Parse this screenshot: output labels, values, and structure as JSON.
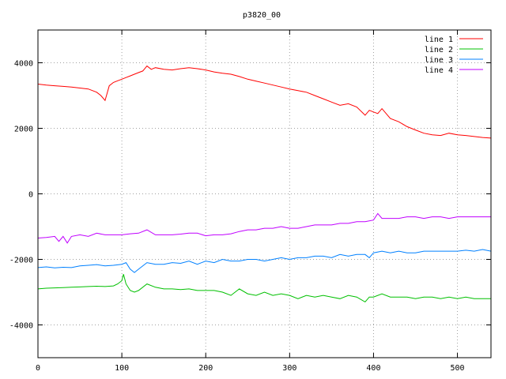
{
  "chart_data": {
    "type": "line",
    "title": "p3820_00",
    "xlabel": "",
    "ylabel": "",
    "xlim": [
      0,
      540
    ],
    "ylim": [
      -5000,
      5000
    ],
    "xticks": [
      0,
      100,
      200,
      300,
      400,
      500
    ],
    "yticks": [
      -4000,
      -2000,
      0,
      2000,
      4000
    ],
    "grid": true,
    "legend_position": "top-right",
    "series": [
      {
        "name": "line 1",
        "color": "#ff0000",
        "x": [
          0,
          10,
          20,
          30,
          40,
          50,
          60,
          70,
          75,
          80,
          85,
          90,
          95,
          100,
          105,
          110,
          115,
          120,
          125,
          130,
          135,
          140,
          150,
          160,
          170,
          180,
          190,
          200,
          210,
          220,
          230,
          240,
          250,
          260,
          270,
          280,
          290,
          300,
          310,
          320,
          330,
          340,
          350,
          360,
          370,
          380,
          390,
          395,
          400,
          405,
          410,
          420,
          430,
          440,
          450,
          460,
          470,
          480,
          490,
          500,
          510,
          520,
          530,
          540
        ],
        "y": [
          3350,
          3320,
          3300,
          3280,
          3260,
          3230,
          3200,
          3100,
          3000,
          2850,
          3300,
          3400,
          3450,
          3500,
          3550,
          3600,
          3650,
          3700,
          3750,
          3900,
          3800,
          3850,
          3800,
          3780,
          3820,
          3850,
          3820,
          3780,
          3720,
          3680,
          3650,
          3580,
          3500,
          3440,
          3380,
          3320,
          3260,
          3200,
          3150,
          3100,
          3000,
          2900,
          2800,
          2700,
          2750,
          2650,
          2400,
          2550,
          2500,
          2450,
          2600,
          2300,
          2200,
          2050,
          1950,
          1850,
          1800,
          1780,
          1850,
          1800,
          1780,
          1750,
          1720,
          1700
        ]
      },
      {
        "name": "line 2",
        "color": "#00c000",
        "x": [
          0,
          10,
          20,
          30,
          40,
          50,
          60,
          70,
          80,
          90,
          95,
          100,
          102,
          105,
          110,
          115,
          120,
          130,
          140,
          150,
          160,
          170,
          180,
          190,
          200,
          210,
          220,
          230,
          240,
          250,
          260,
          270,
          280,
          290,
          300,
          310,
          320,
          330,
          340,
          350,
          360,
          370,
          380,
          390,
          395,
          400,
          410,
          420,
          430,
          440,
          450,
          460,
          470,
          480,
          490,
          500,
          510,
          520,
          530,
          540
        ],
        "y": [
          -2900,
          -2880,
          -2870,
          -2860,
          -2850,
          -2840,
          -2830,
          -2820,
          -2830,
          -2810,
          -2750,
          -2650,
          -2450,
          -2750,
          -2950,
          -3000,
          -2950,
          -2750,
          -2850,
          -2900,
          -2900,
          -2920,
          -2900,
          -2950,
          -2950,
          -2950,
          -3000,
          -3100,
          -2900,
          -3050,
          -3100,
          -3000,
          -3100,
          -3050,
          -3100,
          -3200,
          -3100,
          -3150,
          -3100,
          -3150,
          -3200,
          -3100,
          -3150,
          -3300,
          -3150,
          -3150,
          -3050,
          -3150,
          -3150,
          -3150,
          -3200,
          -3150,
          -3150,
          -3200,
          -3150,
          -3200,
          -3150,
          -3200,
          -3200,
          -3200
        ]
      },
      {
        "name": "line 3",
        "color": "#0080ff",
        "x": [
          0,
          10,
          20,
          30,
          40,
          50,
          60,
          70,
          80,
          90,
          100,
          105,
          110,
          115,
          120,
          130,
          140,
          150,
          160,
          170,
          180,
          190,
          200,
          210,
          220,
          230,
          240,
          250,
          260,
          270,
          280,
          290,
          300,
          310,
          320,
          330,
          340,
          350,
          360,
          370,
          380,
          390,
          395,
          400,
          410,
          420,
          430,
          440,
          450,
          460,
          470,
          480,
          490,
          500,
          510,
          520,
          530,
          540
        ],
        "y": [
          -2250,
          -2230,
          -2260,
          -2240,
          -2250,
          -2200,
          -2180,
          -2160,
          -2200,
          -2180,
          -2150,
          -2100,
          -2300,
          -2400,
          -2300,
          -2100,
          -2150,
          -2150,
          -2100,
          -2120,
          -2050,
          -2150,
          -2050,
          -2100,
          -2000,
          -2050,
          -2050,
          -2000,
          -2000,
          -2050,
          -2000,
          -1950,
          -2000,
          -1950,
          -1950,
          -1900,
          -1900,
          -1950,
          -1850,
          -1900,
          -1850,
          -1850,
          -1950,
          -1800,
          -1750,
          -1800,
          -1750,
          -1800,
          -1800,
          -1750,
          -1750,
          -1750,
          -1750,
          -1750,
          -1720,
          -1750,
          -1700,
          -1750
        ]
      },
      {
        "name": "line 4",
        "color": "#c000ff",
        "x": [
          0,
          10,
          20,
          25,
          30,
          35,
          40,
          50,
          60,
          70,
          80,
          90,
          100,
          110,
          120,
          130,
          140,
          150,
          160,
          170,
          180,
          190,
          200,
          210,
          220,
          230,
          240,
          250,
          260,
          270,
          280,
          290,
          300,
          310,
          320,
          330,
          340,
          350,
          360,
          370,
          380,
          390,
          400,
          405,
          410,
          420,
          430,
          440,
          450,
          460,
          470,
          480,
          490,
          500,
          510,
          520,
          530,
          540
        ],
        "y": [
          -1350,
          -1330,
          -1300,
          -1450,
          -1300,
          -1500,
          -1300,
          -1250,
          -1300,
          -1200,
          -1250,
          -1250,
          -1250,
          -1220,
          -1200,
          -1100,
          -1250,
          -1250,
          -1250,
          -1230,
          -1200,
          -1200,
          -1280,
          -1250,
          -1250,
          -1220,
          -1150,
          -1100,
          -1100,
          -1050,
          -1050,
          -1000,
          -1050,
          -1050,
          -1000,
          -950,
          -950,
          -950,
          -900,
          -900,
          -850,
          -850,
          -800,
          -600,
          -750,
          -750,
          -750,
          -700,
          -700,
          -750,
          -700,
          -700,
          -750,
          -700,
          -700,
          -700,
          -700,
          -700
        ]
      }
    ]
  }
}
